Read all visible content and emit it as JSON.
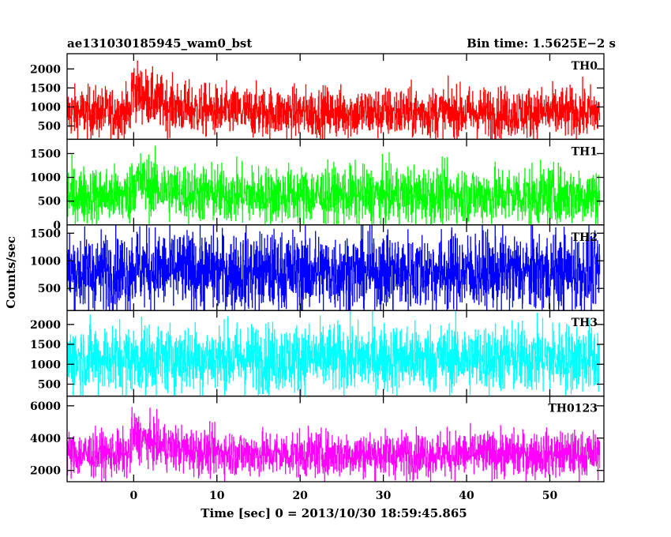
{
  "chart_data": {
    "type": "line",
    "title_left": "ae131030185945_wam0_bst",
    "title_right": "Bin time: 1.5625E−2 s",
    "xlabel": "Time [sec] 0 = 2013/10/30 18:59:45.865",
    "ylabel": "Counts/sec",
    "xlim": [
      -8,
      56.5
    ],
    "x_ticks": [
      0,
      10,
      20,
      30,
      40,
      50
    ],
    "x_tick_labels": [
      "0",
      "10",
      "20",
      "30",
      "40",
      "50"
    ],
    "x_start": -8,
    "x_end": 56,
    "bin_time": 0.015625,
    "panels": [
      {
        "name": "TH0",
        "color": "#ff0000",
        "ylim": [
          150,
          2400
        ],
        "y_ticks": [
          500,
          1000,
          1500,
          2000
        ],
        "y_tick_labels": [
          "500",
          "1000",
          "1500",
          "2000"
        ],
        "baseline": 850,
        "noise": 330,
        "burst_peak": 700,
        "burst_start": -0.3,
        "burst_decay": 3.5
      },
      {
        "name": "TH1",
        "color": "#00ff00",
        "ylim": [
          0,
          1800
        ],
        "y_ticks": [
          0,
          500,
          1000,
          1500
        ],
        "y_tick_labels": [
          "0",
          "500",
          "1000",
          "1500"
        ],
        "baseline": 620,
        "noise": 300,
        "burst_peak": 350,
        "burst_start": -0.3,
        "burst_decay": 4.0
      },
      {
        "name": "TH2",
        "color": "#0000ff",
        "ylim": [
          100,
          1650
        ],
        "y_ticks": [
          500,
          1000,
          1500
        ],
        "y_tick_labels": [
          "500",
          "1000",
          "1500"
        ],
        "baseline": 800,
        "noise": 360,
        "burst_peak": 120,
        "burst_start": -0.3,
        "burst_decay": 3.0
      },
      {
        "name": "TH3",
        "color": "#00ffff",
        "ylim": [
          200,
          2350
        ],
        "y_ticks": [
          500,
          1000,
          1500,
          2000
        ],
        "y_tick_labels": [
          "500",
          "1000",
          "1500",
          "2000"
        ],
        "baseline": 1150,
        "noise": 430,
        "burst_peak": 0,
        "burst_start": -0.3,
        "burst_decay": 3.0
      },
      {
        "name": "TH0123",
        "color": "#ff00ff",
        "ylim": [
          1300,
          6600
        ],
        "y_ticks": [
          2000,
          4000,
          6000
        ],
        "y_tick_labels": [
          "2000",
          "4000",
          "6000"
        ],
        "baseline": 3000,
        "noise": 700,
        "burst_peak": 1300,
        "burst_start": -0.3,
        "burst_decay": 4.0
      }
    ]
  }
}
